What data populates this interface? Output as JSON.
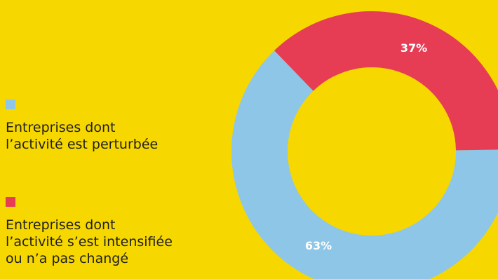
{
  "colors": {
    "background": "#F7D700",
    "perturbed": "#8EC6E8",
    "intensified": "#E63D55"
  },
  "legend": {
    "items": [
      {
        "label": "Entreprises dont\nl’activité est perturbée",
        "color": "#8EC6E8"
      },
      {
        "label": "Entreprises dont\nl’activité s’est intensifiée\nou n’a pas changé",
        "color": "#E63D55"
      }
    ]
  },
  "chart_data": {
    "type": "pie",
    "donut": true,
    "title": "",
    "slices": [
      {
        "label": "Entreprises dont l’activité est perturbée",
        "value": 63,
        "display": "63%",
        "color": "#8EC6E8"
      },
      {
        "label": "Entreprises dont l’activité s’est intensifiée ou n’a pas changé",
        "value": 37,
        "display": "37%",
        "color": "#E63D55"
      }
    ],
    "legend_position": "left"
  }
}
